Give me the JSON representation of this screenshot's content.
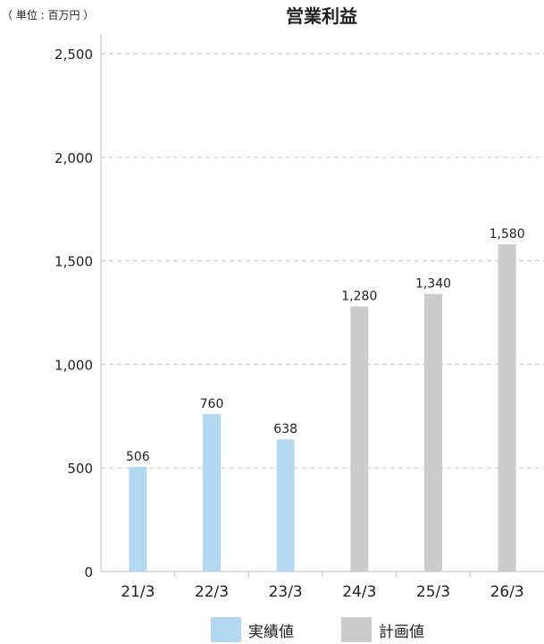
{
  "unit_note": "（ 単位 : 百万円 ）",
  "chart_data": {
    "type": "bar",
    "title": "営業利益",
    "categories": [
      "21/3",
      "22/3",
      "23/3",
      "24/3",
      "25/3",
      "26/3"
    ],
    "values": [
      506,
      760,
      638,
      1280,
      1340,
      1580
    ],
    "value_labels": [
      "506",
      "760",
      "638",
      "1,280",
      "1,340",
      "1,580"
    ],
    "value_types": [
      "actual",
      "actual",
      "actual",
      "plan",
      "plan",
      "plan"
    ],
    "ylim": [
      0,
      2500
    ],
    "yticks": [
      0,
      500,
      1000,
      1500,
      2000,
      2500
    ],
    "ytick_labels": [
      "0",
      "500",
      "1,000",
      "1,500",
      "2,000",
      "2,500"
    ],
    "xlabel": "",
    "ylabel": "",
    "grid": true,
    "legend_position": "bottom",
    "legend": [
      {
        "key": "actual",
        "label": "実績値",
        "color": "#b3d9f2"
      },
      {
        "key": "plan",
        "label": "計画値",
        "color": "#cccccc"
      }
    ]
  }
}
